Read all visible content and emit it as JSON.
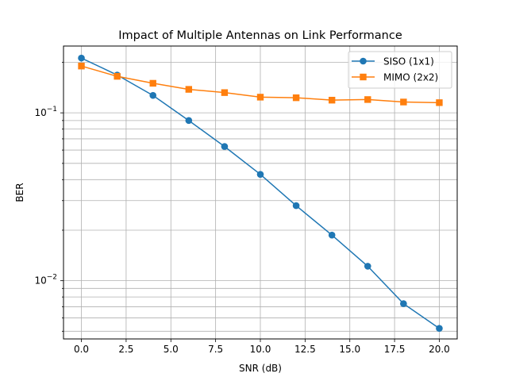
{
  "chart_data": {
    "type": "line",
    "title": "Impact of Multiple Antennas on Link Performance",
    "xlabel": "SNR (dB)",
    "ylabel": "BER",
    "yscale": "log",
    "xlim": [
      -1.0,
      21.0
    ],
    "ylim": [
      0.0045,
      0.25
    ],
    "grid": "on (major and minor)",
    "legend_position": "top-right",
    "x_ticks": [
      "0.0",
      "2.5",
      "5.0",
      "7.5",
      "10.0",
      "12.5",
      "15.0",
      "17.5",
      "20.0"
    ],
    "y_ticks": [
      {
        "base": "10",
        "exp": "−1"
      },
      {
        "base": "10",
        "exp": "−2"
      }
    ],
    "x": [
      0,
      2,
      4,
      6,
      8,
      10,
      12,
      14,
      16,
      18,
      20
    ],
    "series": [
      {
        "name": "SISO (1x1)",
        "color": "#1f77b4",
        "marker": "circle",
        "values": [
          0.212,
          0.168,
          0.127,
          0.09,
          0.063,
          0.043,
          0.028,
          0.0187,
          0.0122,
          0.0073,
          0.0052
        ]
      },
      {
        "name": "MIMO (2x2)",
        "color": "#ff7f0e",
        "marker": "square",
        "values": [
          0.19,
          0.165,
          0.15,
          0.138,
          0.132,
          0.124,
          0.123,
          0.119,
          0.12,
          0.116,
          0.115
        ]
      }
    ]
  }
}
